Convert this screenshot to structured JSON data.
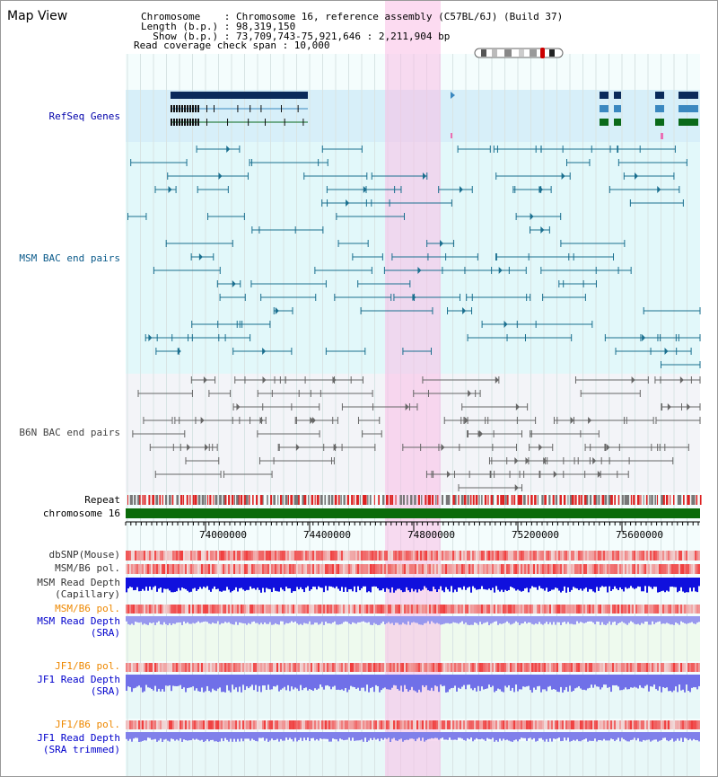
{
  "title": "Map View",
  "info": {
    "chromosome": "Chromosome    : Chromosome 16, reference assembly (C57BL/6J) (Build 37)",
    "length": "Length (b.p.) : 98,319,150",
    "show": "  Show (b.p.) : 73,709,743-75,921,646 : 2,211,904 bp",
    "coverage": "Read coverage check span : 10,000"
  },
  "tracks": {
    "refseq": "RefSeq Genes",
    "msm_bac": "MSM BAC end pairs",
    "b6n_bac": "B6N BAC end pairs",
    "repeat": "Repeat",
    "chromosome": "chromosome 16",
    "dbsnp": "dbSNP(Mouse)",
    "msm_b6_pol": "MSM/B6 pol.",
    "msm_depth_cap_1": "MSM Read Depth",
    "msm_depth_cap_2": "(Capillary)",
    "msm_b6_pol2": "MSM/B6 pol.",
    "msm_depth_sra_1": "MSM Read Depth",
    "msm_depth_sra_2": "(SRA)",
    "jf1_b6_pol": "JF1/B6 pol.",
    "jf1_depth_sra_1": "JF1 Read Depth",
    "jf1_depth_sra_2": "(SRA)",
    "jf1_b6_pol2": "JF1/B6 pol.",
    "jf1_depth_trim_1": "JF1 Read Depth",
    "jf1_depth_trim_2": "(SRA trimmed)"
  },
  "ticks": [
    "74000000",
    "74400000",
    "74800000",
    "75200000",
    "75600000"
  ],
  "colors": {
    "refseq_bg": "#d9f0fb",
    "msm_bg": "#e4f9fb",
    "b6n_bg": "#f3f3f8",
    "highlight": "#f9d9ee",
    "chromosome": "#0a6b0a",
    "msm_label": "#0a5a8a",
    "refseq_label": "#0000aa",
    "b6n_label": "#444444",
    "orange_label": "#ee8800",
    "blue_label": "#0000cc"
  }
}
